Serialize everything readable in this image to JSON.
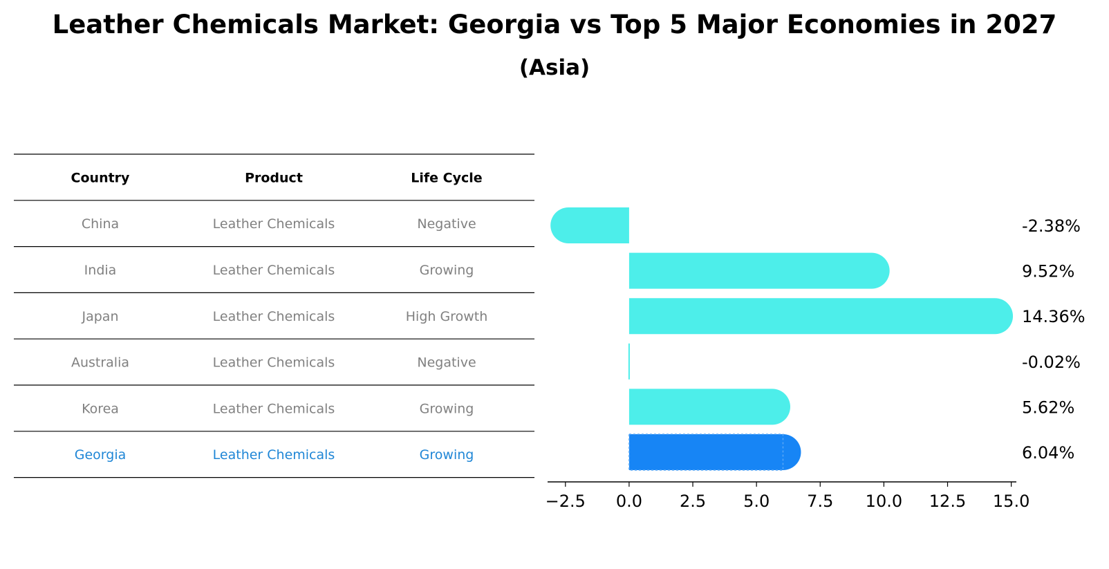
{
  "colors": {
    "bar": "#4deeea",
    "highlight": "#1785f5",
    "highlight_text": "#1f86d6",
    "muted_text": "#808080"
  },
  "chart_data": {
    "type": "bar",
    "orientation": "horizontal",
    "title": "Leather Chemicals Market: Georgia vs Top 5 Major Economies in 2027",
    "subtitle": "(Asia)",
    "categories": [
      "China",
      "India",
      "Japan",
      "Australia",
      "Korea",
      "Georgia"
    ],
    "values": [
      -2.38,
      9.52,
      14.36,
      -0.02,
      5.62,
      6.04
    ],
    "value_labels": [
      "-2.38%",
      "9.52%",
      "14.36%",
      "-0.02%",
      "5.62%",
      "6.04%"
    ],
    "highlight": "Georgia",
    "xlim": [
      -3.2,
      15.2
    ],
    "xticks": [
      -2.5,
      0.0,
      2.5,
      5.0,
      7.5,
      10.0,
      12.5,
      15.0
    ],
    "xtick_labels": [
      "−2.5",
      "0.0",
      "2.5",
      "5.0",
      "7.5",
      "10.0",
      "12.5",
      "15.0"
    ],
    "xlabel": "",
    "ylabel": ""
  },
  "table": {
    "headers": [
      "Country",
      "Product",
      "Life Cycle"
    ],
    "rows": [
      [
        "China",
        "Leather Chemicals",
        "Negative"
      ],
      [
        "India",
        "Leather Chemicals",
        "Growing"
      ],
      [
        "Japan",
        "Leather Chemicals",
        "High Growth"
      ],
      [
        "Australia",
        "Leather Chemicals",
        "Negative"
      ],
      [
        "Korea",
        "Leather Chemicals",
        "Growing"
      ],
      [
        "Georgia",
        "Leather Chemicals",
        "Growing"
      ]
    ],
    "highlight_row": 5
  }
}
